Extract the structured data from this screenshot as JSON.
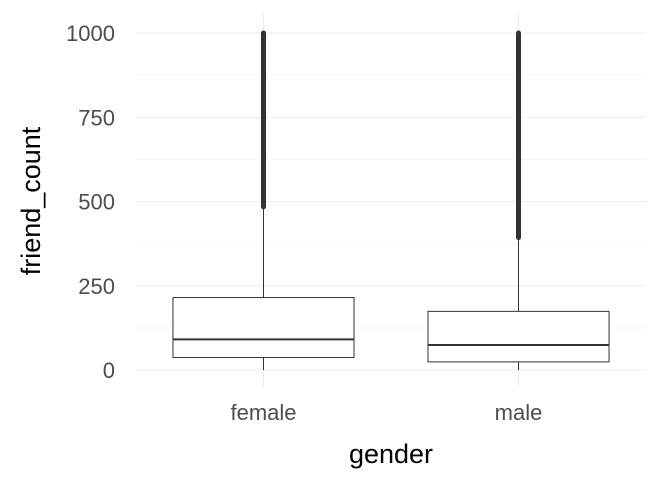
{
  "chart_data": {
    "type": "box",
    "xlabel": "gender",
    "ylabel": "friend_count",
    "categories": [
      "female",
      "male"
    ],
    "ylim": [
      -30,
      1030
    ],
    "y_ticks": [
      0,
      250,
      500,
      750,
      1000
    ],
    "grid": true,
    "boxes": [
      {
        "category": "female",
        "whisker_low": 0,
        "q1": 37,
        "median": 91,
        "q3": 215,
        "whisker_high": 484,
        "outliers_range": [
          484,
          1000
        ]
      },
      {
        "category": "male",
        "whisker_low": 0,
        "q1": 24,
        "median": 74,
        "q3": 174,
        "whisker_high": 393,
        "outliers_range": [
          393,
          1000
        ]
      }
    ],
    "colors": {
      "box_stroke": "#333333",
      "box_fill": "#ffffff",
      "grid_major": "#ebebeb",
      "grid_minor": "#f4f4f4",
      "outliers": "#333333"
    }
  }
}
